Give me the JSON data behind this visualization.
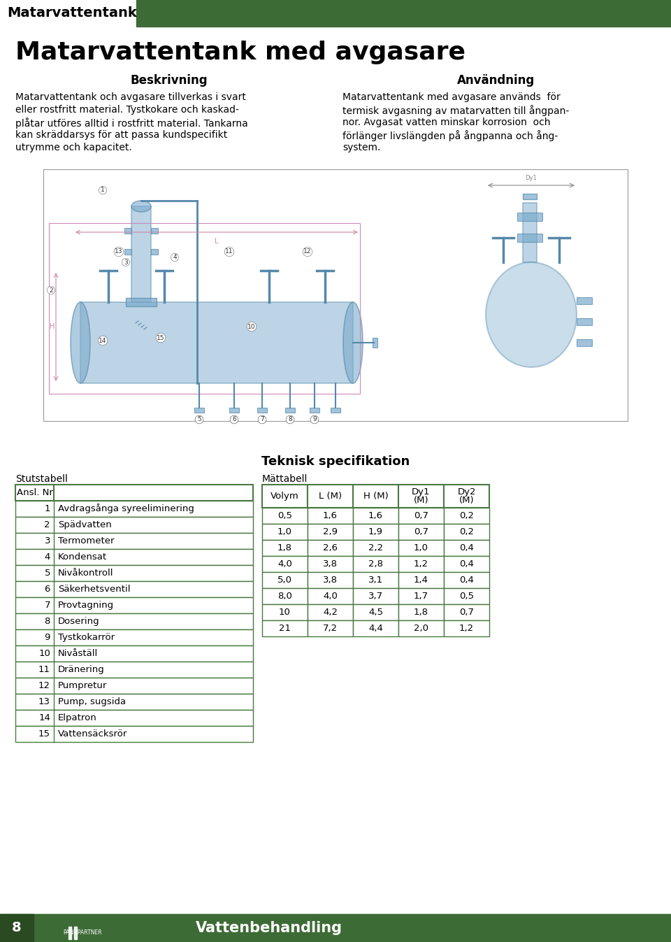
{
  "page_bg": "#ffffff",
  "header_bar_color": "#3d6b35",
  "header_text": "Matarvattentank",
  "header_text_color": "#000000",
  "title": "Matarvattentank med avgasare",
  "title_color": "#000000",
  "beskrivning_title": "Beskrivning",
  "anvandning_title": "Användning",
  "beskrivning_lines": [
    "Matarvattentank och avgasare tillverkas i svart",
    "eller rostfritt material. Tystkokare och kaskad-",
    "plåtar utföres alltid i rostfritt material. Tankarna",
    "kan skräddarsys för att passa kundspecifikt",
    "utrymme och kapacitet."
  ],
  "anvandning_lines": [
    "Matarvattentank med avgasare används  för",
    "termisk avgasning av matarvatten till ångpan-",
    "nor. Avgasat vatten minskar korrosion  och",
    "förlänger livslängden på ångpanna och ång-",
    "system."
  ],
  "teknisk_title": "Teknisk specifikation",
  "stutstabell_title": "Stutstabell",
  "mattabell_title": "Mättabell",
  "ansl_nr_header": "Ansl. Nr",
  "stutstabell_rows": [
    [
      1,
      "Avdragsånga syreeliminering"
    ],
    [
      2,
      "Spädvatten"
    ],
    [
      3,
      "Termometer"
    ],
    [
      4,
      "Kondensat"
    ],
    [
      5,
      "Nivåkontroll"
    ],
    [
      6,
      "Säkerhetsventil"
    ],
    [
      7,
      "Provtagning"
    ],
    [
      8,
      "Dosering"
    ],
    [
      9,
      "Tystkokarrör"
    ],
    [
      10,
      "Nivåställ"
    ],
    [
      11,
      "Dränering"
    ],
    [
      12,
      "Pumpretur"
    ],
    [
      13,
      "Pump, sugsida"
    ],
    [
      14,
      "Elpatron"
    ],
    [
      15,
      "Vattensäcksrör"
    ]
  ],
  "mattabell_header_line1": [
    "Volym",
    "L (M)",
    "H (M)",
    "Dy1",
    "Dy2"
  ],
  "mattabell_header_line2": [
    "",
    "",
    "",
    "(M)",
    "(M)"
  ],
  "mattabell_rows": [
    [
      "0,5",
      "1,6",
      "1,6",
      "0,7",
      "0,2"
    ],
    [
      "1,0",
      "2,9",
      "1,9",
      "0,7",
      "0,2"
    ],
    [
      "1,8",
      "2,6",
      "2,2",
      "1,0",
      "0,4"
    ],
    [
      "4,0",
      "3,8",
      "2,8",
      "1,2",
      "0,4"
    ],
    [
      "5,0",
      "3,8",
      "3,1",
      "1,4",
      "0,4"
    ],
    [
      "8,0",
      "4,0",
      "3,7",
      "1,7",
      "0,5"
    ],
    [
      "10",
      "4,2",
      "4,5",
      "1,8",
      "0,7"
    ],
    [
      "21",
      "7,2",
      "4,4",
      "2,0",
      "1,2"
    ]
  ],
  "footer_bar_color": "#3d6b35",
  "footer_text": "Vattenbehandling",
  "footer_page": "8",
  "green_color": "#3d6b35",
  "draw_color": "#7aaacc",
  "draw_line_color": "#5588aa",
  "table_border_color": "#4a7a42"
}
